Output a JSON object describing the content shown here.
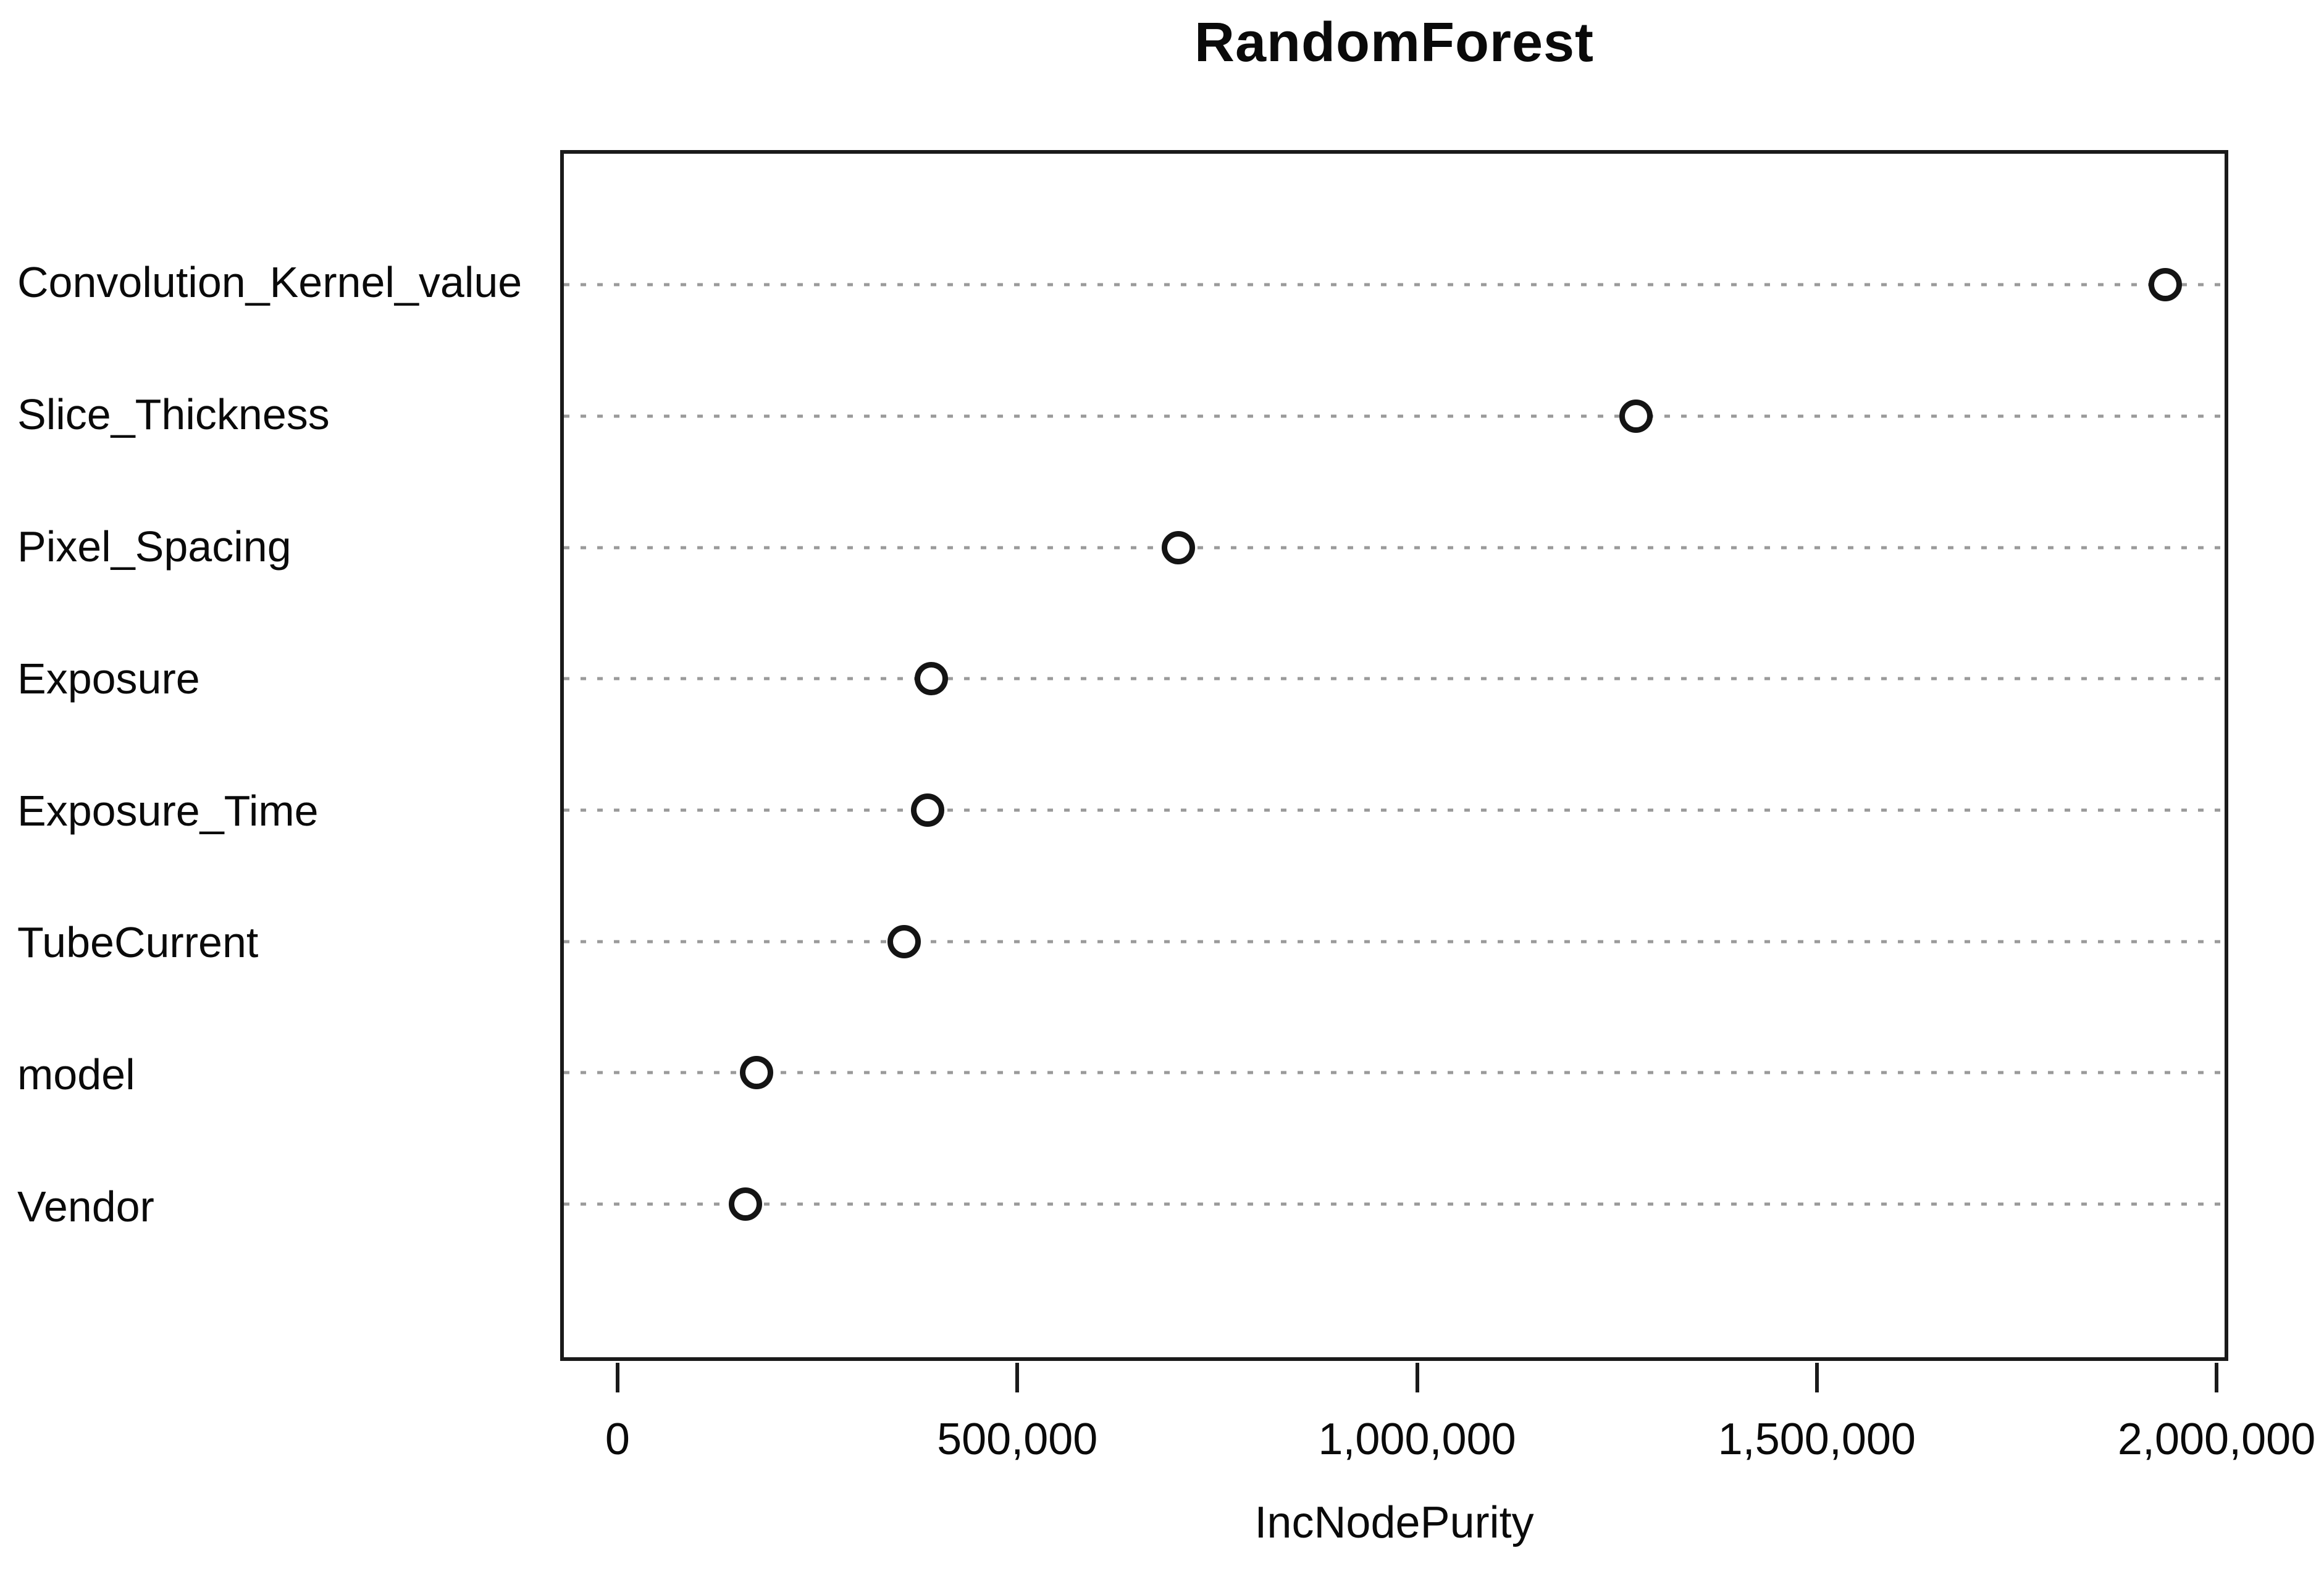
{
  "chart_data": {
    "type": "scatter",
    "variant": "dot-chart-variable-importance",
    "title": "RandomForest",
    "xlabel": "IncNodePurity",
    "categories": [
      "Convolution_Kernel_value",
      "Slice_Thickness",
      "Pixel_Spacing",
      "Exposure",
      "Exposure_Time",
      "TubeCurrent",
      "model",
      "Vendor"
    ],
    "values": [
      1940000,
      1275000,
      700000,
      390000,
      385000,
      356000,
      170000,
      156000
    ],
    "xlim": [
      0,
      2000000
    ],
    "x_ticks": {
      "values": [
        0,
        500000,
        1000000,
        1500000,
        2000000
      ],
      "labels": [
        "0",
        "500,000",
        "1,000,000",
        "1,500,000",
        "2,000,000"
      ]
    },
    "grid": "horizontal-dotted",
    "legend": "none",
    "colors": {
      "point_stroke": "#141414",
      "point_fill": "#ffffff",
      "gridline": "#9a9a9a",
      "frame": "#1a1a1a",
      "text": "#0a0a0a",
      "background": "#ffffff"
    }
  }
}
